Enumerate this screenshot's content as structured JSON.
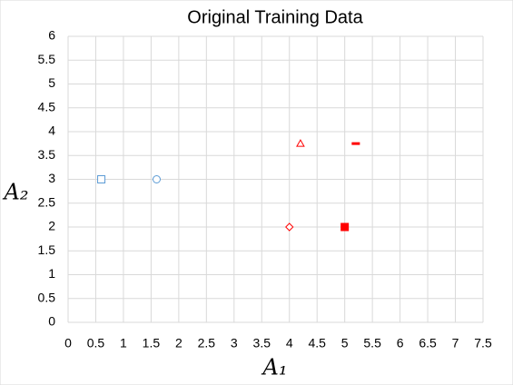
{
  "chart_data": {
    "type": "scatter",
    "title": "Original Training Data",
    "x_label": "A₁",
    "y_label": "A₂",
    "series": [
      {
        "color": "#5b9bd5",
        "marker": "square",
        "filled": false,
        "x": [
          0.6
        ],
        "values": [
          3
        ]
      },
      {
        "color": "#5b9bd5",
        "marker": "circle",
        "filled": false,
        "x": [
          1.6
        ],
        "values": [
          3
        ]
      },
      {
        "color": "#ff0000",
        "marker": "triangle",
        "filled": false,
        "x": [
          4.2
        ],
        "values": [
          3.75
        ]
      },
      {
        "color": "#ff0000",
        "marker": "dash",
        "filled": true,
        "x": [
          5.2
        ],
        "values": [
          3.75
        ]
      },
      {
        "color": "#ff0000",
        "marker": "diamond",
        "filled": false,
        "x": [
          4
        ],
        "values": [
          2
        ]
      },
      {
        "color": "#ff0000",
        "marker": "square",
        "filled": true,
        "x": [
          5
        ],
        "values": [
          2
        ]
      }
    ],
    "xlim": [
      0,
      7.5
    ],
    "xticks": [
      0,
      0.5,
      1,
      1.5,
      2,
      2.5,
      3,
      3.5,
      4,
      4.5,
      5,
      5.5,
      6,
      6.5,
      7,
      7.5
    ],
    "ylim": [
      0,
      6
    ],
    "yticks": [
      0,
      0.5,
      1,
      1.5,
      2,
      2.5,
      3,
      3.5,
      4,
      4.5,
      5,
      5.5,
      6
    ],
    "grid": true
  }
}
